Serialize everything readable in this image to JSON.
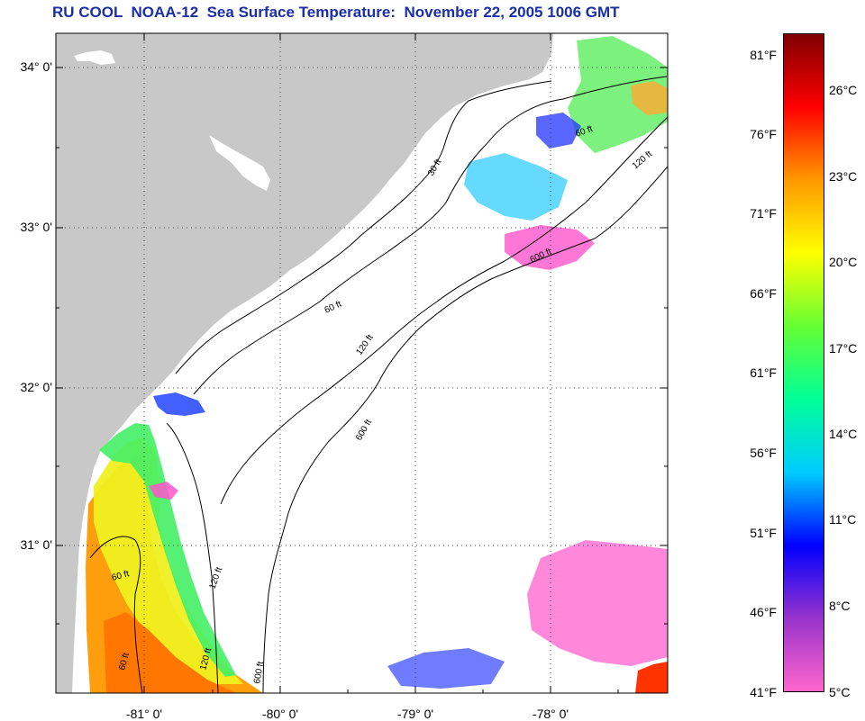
{
  "title": "RU COOL  NOAA-12  Sea Surface Temperature:  November 22, 2005 1006 GMT",
  "map": {
    "lat_labels": [
      "34° 0'",
      "33° 0'",
      "32° 0'",
      "31° 0'"
    ],
    "lon_labels": [
      "-81° 0'",
      "-80° 0'",
      "-79° 0'",
      "-78° 0'"
    ],
    "contour_labels": [
      "60 ft",
      "120 ft",
      "600 ft",
      "30 ft",
      "60 ft",
      "120 ft",
      "60 ft",
      "120 ft",
      "600 ft",
      "60 ft",
      "120 ft",
      "600 ft"
    ],
    "colors": {
      "land": "#c8c8c8",
      "ocean_no_data": "#ffffff",
      "frame": "#000000"
    }
  },
  "colorbar": {
    "fahrenheit_labels": [
      "81°F",
      "76°F",
      "71°F",
      "66°F",
      "61°F",
      "56°F",
      "51°F",
      "46°F",
      "41°F"
    ],
    "celsius_labels": [
      "26°C",
      "23°C",
      "20°C",
      "17°C",
      "14°C",
      "11°C",
      "8°C",
      "5°C"
    ],
    "stops": [
      "#ff66cc",
      "#9933cc",
      "#0000ff",
      "#00ccff",
      "#00ff99",
      "#66ff33",
      "#ffff00",
      "#ff9900",
      "#ff0000",
      "#800000"
    ]
  }
}
